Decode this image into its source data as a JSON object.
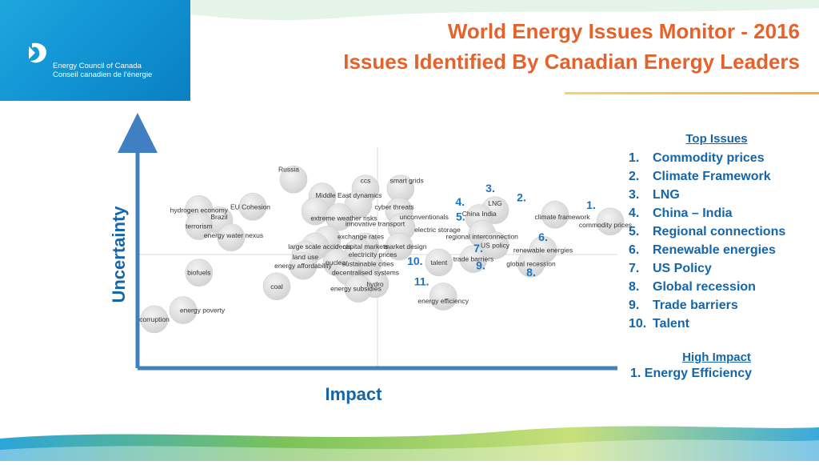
{
  "header": {
    "org_name_en": "Energy Council of Canada",
    "org_name_fr": "Conseil canadien de l'énergie",
    "title_line1": "World Energy Issues Monitor - 2016",
    "title_line2": "Issues Identified By Canadian Energy Leaders"
  },
  "legend": {
    "top_heading": "Top Issues",
    "top_issues": [
      {
        "num": "1.",
        "label": "Commodity prices"
      },
      {
        "num": "2.",
        "label": "Climate Framework"
      },
      {
        "num": "3.",
        "label": "LNG"
      },
      {
        "num": "4.",
        "label": "China – India"
      },
      {
        "num": "5.",
        "label": "Regional connections"
      },
      {
        "num": "6.",
        "label": "Renewable energies"
      },
      {
        "num": "7.",
        "label": "US Policy"
      },
      {
        "num": "8.",
        "label": "Global recession"
      },
      {
        "num": "9.",
        "label": "Trade barriers"
      },
      {
        "num": "10.",
        "label": "Talent"
      }
    ],
    "impact_heading": "High Impact",
    "impact_item": "1. Energy Efficiency"
  },
  "chart_data": {
    "type": "scatter",
    "xlabel": "Impact",
    "ylabel": "Uncertainty",
    "xlim": [
      0,
      1
    ],
    "ylim": [
      0,
      1
    ],
    "axis_color": "#3f7fc2",
    "bubble_color": "#e6e6e6",
    "number_color": "#1e73be",
    "points": [
      {
        "label": "Russia",
        "x": 0.325,
        "y": 0.83,
        "lx": -0.01,
        "ly": 0.045
      },
      {
        "label": "ccs",
        "x": 0.475,
        "y": 0.79,
        "lx": 0.0,
        "ly": 0.035
      },
      {
        "label": "smart grids",
        "x": 0.548,
        "y": 0.79,
        "lx": 0.013,
        "ly": 0.035
      },
      {
        "label": "Middle East dynamics",
        "x": 0.385,
        "y": 0.755,
        "lx": 0.055,
        "ly": 0.005
      },
      {
        "label": "cyber threats",
        "x": 0.46,
        "y": 0.72,
        "lx": 0.075,
        "ly": -0.01
      },
      {
        "label": "EU Cohesion",
        "x": 0.24,
        "y": 0.71,
        "lx": -0.005,
        "ly": 0.0
      },
      {
        "label": "hydrogen economy",
        "x": 0.128,
        "y": 0.7,
        "lx": 0.0,
        "ly": -0.005
      },
      {
        "label": "extreme weather risks",
        "x": 0.37,
        "y": 0.69,
        "lx": 0.06,
        "ly": -0.03
      },
      {
        "label": "unconventionals",
        "x": 0.545,
        "y": 0.69,
        "lx": 0.052,
        "ly": -0.025
      },
      {
        "label": "Brazil",
        "x": 0.17,
        "y": 0.65,
        "lx": 0.0,
        "ly": 0.015
      },
      {
        "label": "innovative transport",
        "x": 0.42,
        "y": 0.665,
        "lx": 0.075,
        "ly": -0.03
      },
      {
        "label": "terrorism",
        "x": 0.128,
        "y": 0.625,
        "lx": 0.0,
        "ly": 0.0
      },
      {
        "label": "electric storage",
        "x": 0.55,
        "y": 0.62,
        "lx": 0.075,
        "ly": -0.01
      },
      {
        "label": "energy water nexus",
        "x": 0.195,
        "y": 0.575,
        "lx": 0.005,
        "ly": 0.01
      },
      {
        "label": "exchange rates",
        "x": 0.395,
        "y": 0.565,
        "lx": 0.07,
        "ly": 0.015
      },
      {
        "label": "large scale accidents",
        "x": 0.37,
        "y": 0.535,
        "lx": 0.01,
        "ly": 0.0
      },
      {
        "label": "capital markets",
        "x": 0.475,
        "y": 0.535,
        "lx": 0.0,
        "ly": 0.0
      },
      {
        "label": "market design",
        "x": 0.545,
        "y": 0.535,
        "lx": 0.013,
        "ly": 0.0
      },
      {
        "label": "electricity prices",
        "x": 0.46,
        "y": 0.51,
        "lx": 0.03,
        "ly": -0.01
      },
      {
        "label": "land use",
        "x": 0.35,
        "y": 0.5,
        "lx": 0.0,
        "ly": -0.01
      },
      {
        "label": "nuclear",
        "x": 0.415,
        "y": 0.465,
        "lx": 0.0,
        "ly": 0.0
      },
      {
        "label": "sustainable cities",
        "x": 0.48,
        "y": 0.465,
        "lx": 0.0,
        "ly": -0.005
      },
      {
        "label": "energy affordability",
        "x": 0.345,
        "y": 0.45,
        "lx": 0.0,
        "ly": 0.0
      },
      {
        "label": "decentralised systems",
        "x": 0.44,
        "y": 0.425,
        "lx": 0.035,
        "ly": -0.005
      },
      {
        "label": "biofuels",
        "x": 0.128,
        "y": 0.42,
        "lx": 0.0,
        "ly": 0.0
      },
      {
        "label": "coal",
        "x": 0.29,
        "y": 0.36,
        "lx": 0.0,
        "ly": 0.0
      },
      {
        "label": "hydro",
        "x": 0.495,
        "y": 0.37,
        "lx": 0.0,
        "ly": 0.0
      },
      {
        "label": "energy subsidies",
        "x": 0.46,
        "y": 0.35,
        "lx": -0.005,
        "ly": 0.0
      },
      {
        "label": "energy poverty",
        "x": 0.095,
        "y": 0.255,
        "lx": 0.04,
        "ly": 0.0
      },
      {
        "label": "corruption",
        "x": 0.035,
        "y": 0.215,
        "lx": 0.0,
        "ly": 0.0
      },
      {
        "label": "LNG",
        "num": "3.",
        "x": 0.745,
        "y": 0.695,
        "lx": 0.0,
        "ly": 0.03,
        "nx": -0.01,
        "ny": 0.08
      },
      {
        "label": "climate framework",
        "num": "2.",
        "x": 0.87,
        "y": 0.675,
        "lx": 0.015,
        "ly": -0.01,
        "nx": -0.07,
        "ny": 0.06
      },
      {
        "label": "commodity prices",
        "num": "1.",
        "x": 0.985,
        "y": 0.645,
        "lx": -0.01,
        "ly": -0.015,
        "nx": -0.04,
        "ny": 0.055
      },
      {
        "label": "China India",
        "num": "4.",
        "x": 0.712,
        "y": 0.66,
        "lx": 0.0,
        "ly": 0.02,
        "nx": -0.04,
        "ny": 0.055
      },
      {
        "label": "regional interconnection",
        "num": "5.",
        "x": 0.718,
        "y": 0.59,
        "lx": 0.0,
        "ly": -0.01,
        "nx": -0.045,
        "ny": 0.06
      },
      {
        "label": "US policy",
        "num": "7.",
        "x": 0.745,
        "y": 0.54,
        "lx": 0.0,
        "ly": 0.0,
        "nx": -0.035,
        "ny": -0.03
      },
      {
        "label": "renewable energies",
        "num": "6.",
        "x": 0.845,
        "y": 0.52,
        "lx": 0.0,
        "ly": 0.0,
        "nx": 0.0,
        "ny": 0.04
      },
      {
        "label": "trade barriers",
        "num": "9.",
        "x": 0.7,
        "y": 0.48,
        "lx": 0.0,
        "ly": 0.0,
        "nx": 0.015,
        "ny": -0.045
      },
      {
        "label": "talent",
        "num": "10.",
        "x": 0.628,
        "y": 0.465,
        "lx": 0.0,
        "ly": 0.0,
        "nx": -0.05,
        "ny": -0.01
      },
      {
        "label": "global recession",
        "num": "8.",
        "x": 0.82,
        "y": 0.46,
        "lx": 0.0,
        "ly": 0.0,
        "nx": 0.0,
        "ny": -0.055
      },
      {
        "label": "energy efficiency",
        "num": "11.",
        "x": 0.637,
        "y": 0.315,
        "lx": 0.0,
        "ly": -0.02,
        "nx": -0.045,
        "ny": 0.05
      }
    ]
  }
}
